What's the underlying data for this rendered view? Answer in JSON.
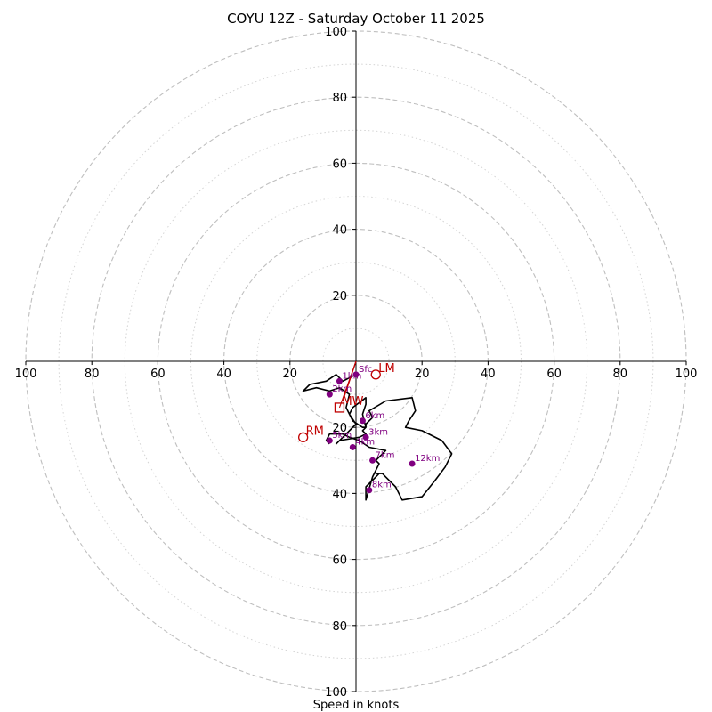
{
  "chart_data": {
    "type": "hodograph",
    "title": "COYU 12Z - Saturday October 11 2025",
    "xlabel": "Speed in knots",
    "units": "knots",
    "axis_range": [
      -100,
      100
    ],
    "tick_labels": [
      "100",
      "80",
      "60",
      "40",
      "20",
      "20",
      "40",
      "60",
      "80",
      "100"
    ],
    "tick_values": [
      -100,
      -80,
      -60,
      -40,
      -20,
      20,
      40,
      60,
      80,
      100
    ],
    "y_tick_values_up": [
      20,
      40,
      60,
      80,
      100
    ],
    "y_tick_values_down": [
      20,
      40,
      60,
      80,
      100
    ],
    "ring_major_kt": [
      20,
      40,
      60,
      80,
      100
    ],
    "ring_minor_kt": [
      10,
      30,
      50,
      70,
      90
    ],
    "colors": {
      "trace": "#000000",
      "height_marker": "#800080",
      "storm_motion": "#c00000",
      "ring": "#bfbfbf"
    },
    "wind_trace": {
      "u": [
        0,
        -4,
        -6,
        -9,
        -14,
        -16,
        -12,
        -8,
        -5,
        -2,
        -3,
        -1,
        2,
        3,
        2,
        3,
        3,
        -1,
        -2,
        0,
        -6,
        -5,
        1,
        3,
        2,
        3,
        3,
        5,
        4,
        9,
        17,
        18,
        16,
        15,
        20,
        26,
        29,
        27,
        24,
        20,
        14,
        12,
        9,
        8,
        6,
        7,
        6,
        3,
        3,
        5,
        7,
        6,
        8,
        9,
        4,
        1,
        -2,
        -4,
        -8,
        -9,
        -8
      ],
      "v": [
        -4,
        -6,
        -4,
        -6,
        -7,
        -9,
        -8,
        -9,
        -8,
        -10,
        -14,
        -18,
        -20,
        -20,
        -16,
        -13,
        -11,
        -14,
        -16,
        -19,
        -25,
        -24,
        -23,
        -22,
        -21,
        -20,
        -19,
        -17,
        -15,
        -12,
        -11,
        -15,
        -18,
        -20,
        -21,
        -24,
        -28,
        -32,
        -36,
        -41,
        -42,
        -38,
        -35,
        -34,
        -34,
        -34,
        -35,
        -38,
        -42,
        -35,
        -31,
        -30,
        -28,
        -27,
        -26,
        -24,
        -23,
        -22,
        -22,
        -24,
        -25
      ]
    },
    "height_markers": [
      {
        "label": "Sfc",
        "u": 0,
        "v": -4
      },
      {
        "label": "1km",
        "u": -5,
        "v": -6
      },
      {
        "label": "2km",
        "u": -8,
        "v": -10
      },
      {
        "label": "3km",
        "u": 3,
        "v": -23
      },
      {
        "label": "4km",
        "u": -1,
        "v": -26
      },
      {
        "label": "5km",
        "u": -8,
        "v": -24
      },
      {
        "label": "6km",
        "u": 2,
        "v": -18
      },
      {
        "label": "7km",
        "u": 5,
        "v": -30
      },
      {
        "label": "8km",
        "u": 4,
        "v": -39
      },
      {
        "label": "12km",
        "u": 17,
        "v": -31
      }
    ],
    "storm_motion": [
      {
        "label": "LM",
        "u": 6,
        "v": -4,
        "marker": "circle"
      },
      {
        "label": "RM",
        "u": -16,
        "v": -23,
        "marker": "circle"
      },
      {
        "label": "MW",
        "u": -5,
        "v": -14,
        "marker": "square"
      }
    ],
    "shear_vector": {
      "u0": 0,
      "v0": 0,
      "u1": -4,
      "v1": -12
    }
  }
}
